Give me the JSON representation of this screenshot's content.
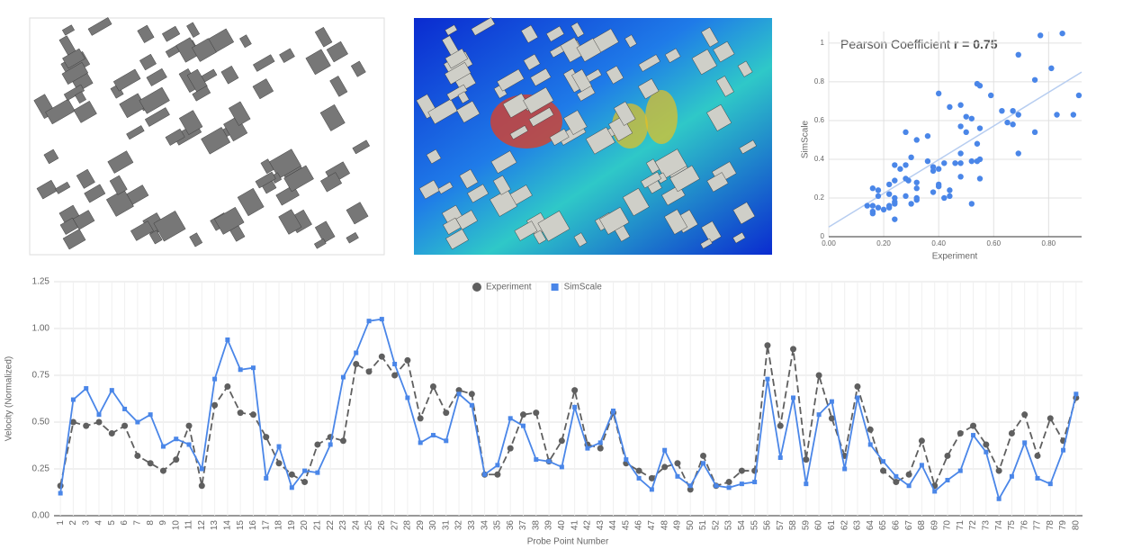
{
  "chart_data": [
    {
      "type": "scatter",
      "annotation": "Pearson Coefficient",
      "annotation_value": "r = 0.75",
      "x_label": "Experiment",
      "y_label": "SimScale",
      "xlim": [
        0,
        0.92
      ],
      "ylim": [
        0,
        1.06
      ],
      "xticks": [
        {
          "value": 0,
          "label": "0.00"
        },
        {
          "value": 0.2,
          "label": "0.20"
        },
        {
          "value": 0.4,
          "label": "0.40"
        },
        {
          "value": 0.6,
          "label": "0.60"
        },
        {
          "value": 0.8,
          "label": "0.80"
        }
      ],
      "yticks": [
        0,
        0.2,
        0.4,
        0.6,
        0.8,
        1
      ],
      "grid": true,
      "color": "#4a86e8",
      "trend_color": "#b7cdf0",
      "trend": {
        "x": [
          0,
          0.92
        ],
        "y": [
          0.05,
          0.85
        ]
      },
      "x": [
        0.16,
        0.5,
        0.48,
        0.5,
        0.44,
        0.48,
        0.32,
        0.28,
        0.24,
        0.3,
        0.48,
        0.16,
        0.59,
        0.69,
        0.55,
        0.54,
        0.42,
        0.28,
        0.22,
        0.18,
        0.38,
        0.42,
        0.4,
        0.81,
        0.77,
        0.85,
        0.75,
        0.83,
        0.52,
        0.69,
        0.55,
        0.67,
        0.65,
        0.22,
        0.22,
        0.36,
        0.54,
        0.55,
        0.29,
        0.4,
        0.67,
        0.38,
        0.36,
        0.55,
        0.28,
        0.24,
        0.2,
        0.26,
        0.28,
        0.14,
        0.32,
        0.16,
        0.18,
        0.24,
        0.24,
        0.91,
        0.48,
        0.89,
        0.3,
        0.75,
        0.52,
        0.32,
        0.69,
        0.46,
        0.24,
        0.18,
        0.22,
        0.4,
        0.16,
        0.32,
        0.44,
        0.48,
        0.38,
        0.24,
        0.44,
        0.54,
        0.32,
        0.52,
        0.4,
        0.63
      ],
      "y": [
        0.12,
        0.62,
        0.68,
        0.54,
        0.67,
        0.57,
        0.5,
        0.54,
        0.37,
        0.41,
        0.38,
        0.25,
        0.73,
        0.94,
        0.78,
        0.79,
        0.2,
        0.37,
        0.15,
        0.24,
        0.23,
        0.38,
        0.74,
        0.87,
        1.04,
        1.05,
        0.81,
        0.63,
        0.39,
        0.43,
        0.4,
        0.65,
        0.59,
        0.22,
        0.27,
        0.52,
        0.48,
        0.3,
        0.29,
        0.26,
        0.58,
        0.36,
        0.39,
        0.56,
        0.3,
        0.2,
        0.14,
        0.35,
        0.21,
        0.16,
        0.28,
        0.16,
        0.15,
        0.17,
        0.18,
        0.73,
        0.31,
        0.63,
        0.17,
        0.54,
        0.61,
        0.25,
        0.63,
        0.38,
        0.29,
        0.21,
        0.16,
        0.27,
        0.13,
        0.19,
        0.24,
        0.43,
        0.34,
        0.09,
        0.21,
        0.39,
        0.2,
        0.17,
        0.35,
        0.65
      ]
    },
    {
      "type": "line",
      "x_label": "Probe Point Number",
      "y_label": "Velocity (Normalized)",
      "ylim": [
        0,
        1.25
      ],
      "yticks": [
        {
          "value": 0,
          "label": "0.00"
        },
        {
          "value": 0.25,
          "label": "0.25"
        },
        {
          "value": 0.5,
          "label": "0.50"
        },
        {
          "value": 0.75,
          "label": "0.75"
        },
        {
          "value": 1,
          "label": "1.00"
        },
        {
          "value": 1.25,
          "label": "1.25"
        }
      ],
      "grid": true,
      "legend": "top",
      "categories": [
        "1",
        "2",
        "3",
        "4",
        "5",
        "6",
        "7",
        "8",
        "9",
        "10",
        "11",
        "12",
        "13",
        "14",
        "15",
        "16",
        "17",
        "18",
        "19",
        "20",
        "21",
        "22",
        "23",
        "24",
        "25",
        "26",
        "27",
        "28",
        "29",
        "30",
        "31",
        "32",
        "33",
        "34",
        "35",
        "36",
        "37",
        "38",
        "39",
        "40",
        "41",
        "42",
        "43",
        "44",
        "45",
        "46",
        "47",
        "48",
        "49",
        "50",
        "51",
        "52",
        "53",
        "54",
        "55",
        "56",
        "57",
        "58",
        "59",
        "60",
        "61",
        "62",
        "63",
        "64",
        "65",
        "66",
        "67",
        "68",
        "69",
        "70",
        "71",
        "72",
        "73",
        "74",
        "75",
        "76",
        "77",
        "78",
        "79",
        "80"
      ],
      "series": [
        {
          "name": "Experiment",
          "color": "#5f5f5f",
          "line_style": "dashed",
          "marker": "circle",
          "values": [
            0.16,
            0.5,
            0.48,
            0.5,
            0.44,
            0.48,
            0.32,
            0.28,
            0.24,
            0.3,
            0.48,
            0.16,
            0.59,
            0.69,
            0.55,
            0.54,
            0.42,
            0.28,
            0.22,
            0.18,
            0.38,
            0.42,
            0.4,
            0.81,
            0.77,
            0.85,
            0.75,
            0.83,
            0.52,
            0.69,
            0.55,
            0.67,
            0.65,
            0.22,
            0.22,
            0.36,
            0.54,
            0.55,
            0.29,
            0.4,
            0.67,
            0.38,
            0.36,
            0.55,
            0.28,
            0.24,
            0.2,
            0.26,
            0.28,
            0.14,
            0.32,
            0.16,
            0.18,
            0.24,
            0.24,
            0.91,
            0.48,
            0.89,
            0.3,
            0.75,
            0.52,
            0.32,
            0.69,
            0.46,
            0.24,
            0.18,
            0.22,
            0.4,
            0.16,
            0.32,
            0.44,
            0.48,
            0.38,
            0.24,
            0.44,
            0.54,
            0.32,
            0.52,
            0.4,
            0.63
          ]
        },
        {
          "name": "SimScale",
          "color": "#4a86e8",
          "line_style": "solid",
          "marker": "square",
          "values": [
            0.12,
            0.62,
            0.68,
            0.54,
            0.67,
            0.57,
            0.5,
            0.54,
            0.37,
            0.41,
            0.38,
            0.25,
            0.73,
            0.94,
            0.78,
            0.79,
            0.2,
            0.37,
            0.15,
            0.24,
            0.23,
            0.38,
            0.74,
            0.87,
            1.04,
            1.05,
            0.81,
            0.63,
            0.39,
            0.43,
            0.4,
            0.65,
            0.59,
            0.22,
            0.27,
            0.52,
            0.48,
            0.3,
            0.29,
            0.26,
            0.58,
            0.36,
            0.39,
            0.56,
            0.3,
            0.2,
            0.14,
            0.35,
            0.21,
            0.16,
            0.28,
            0.16,
            0.15,
            0.17,
            0.18,
            0.73,
            0.31,
            0.63,
            0.17,
            0.54,
            0.61,
            0.25,
            0.63,
            0.38,
            0.29,
            0.21,
            0.16,
            0.27,
            0.13,
            0.19,
            0.24,
            0.43,
            0.34,
            0.09,
            0.21,
            0.39,
            0.2,
            0.17,
            0.35,
            0.65
          ]
        }
      ]
    }
  ]
}
